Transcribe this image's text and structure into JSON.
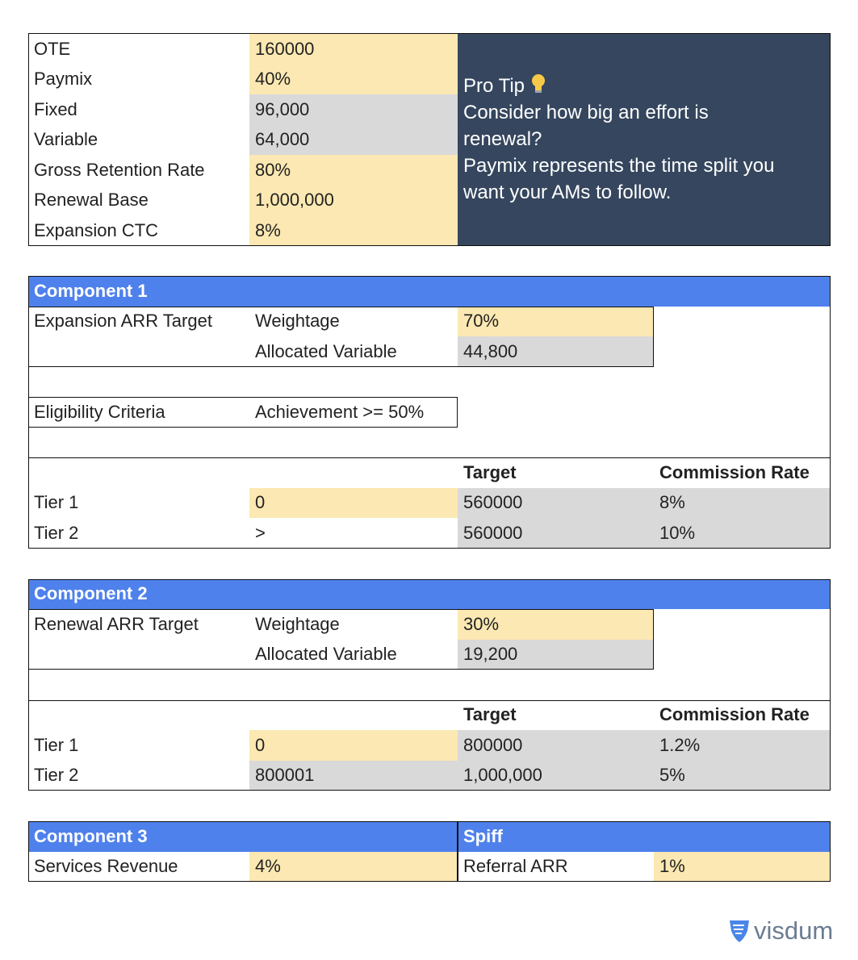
{
  "summary": {
    "rows": [
      [
        "OTE",
        "160000"
      ],
      [
        "Paymix",
        "40%"
      ],
      [
        "Fixed",
        "96,000"
      ],
      [
        "Variable",
        "64,000"
      ],
      [
        "Gross Retention Rate",
        "80%"
      ],
      [
        "Renewal Base",
        "1,000,000"
      ],
      [
        "Expansion CTC",
        "8%"
      ]
    ]
  },
  "pro_tip": {
    "title": "Pro Tip",
    "lines": [
      "Consider how big an effort is",
      "renewal?",
      "Paymix represents the time split you",
      "want your AMs to follow."
    ]
  },
  "component_1": {
    "title": "Component 1",
    "label": "Expansion ARR Target",
    "weightage_label": "Weightage",
    "weightage": "70%",
    "allocated_label": "Allocated Variable",
    "allocated": "44,800",
    "eligibility_label": "Eligibility Criteria",
    "eligibility": "Achievement >= 50%",
    "headers": [
      "Target",
      "Commission Rate"
    ],
    "tiers": [
      [
        "Tier 1",
        "0",
        "560000",
        "8%"
      ],
      [
        "Tier 2",
        ">",
        "560000",
        "10%"
      ]
    ]
  },
  "component_2": {
    "title": "Component 2",
    "label": "Renewal ARR Target",
    "weightage_label": "Weightage",
    "weightage": "30%",
    "allocated_label": "Allocated Variable",
    "allocated": "19,200",
    "headers": [
      "Target",
      "Commission Rate"
    ],
    "tiers": [
      [
        "Tier 1",
        "0",
        "800000",
        "1.2%"
      ],
      [
        "Tier 2",
        "800001",
        "1,000,000",
        "5%"
      ]
    ]
  },
  "component_3": {
    "title": "Component 3",
    "label": "Services Revenue",
    "value": "4%"
  },
  "spiff": {
    "title": "Spiff",
    "label": "Referral ARR",
    "value": "1%"
  },
  "logo": "visdum"
}
